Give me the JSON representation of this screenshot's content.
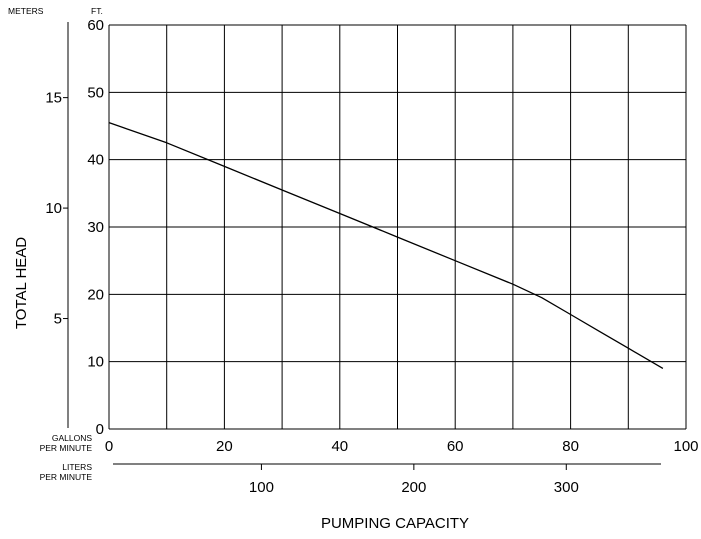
{
  "chart_data": {
    "type": "line",
    "title": "",
    "xlabel": "PUMPING CAPACITY",
    "ylabel": "TOTAL HEAD",
    "y_ft": {
      "unit": "FT.",
      "ticks": [
        0,
        10,
        20,
        30,
        40,
        50,
        60
      ],
      "ylim": [
        0,
        60
      ]
    },
    "y_meters": {
      "unit": "METERS",
      "ticks": [
        5,
        10,
        15
      ]
    },
    "x_gpm": {
      "unit_line1": "GALLONS",
      "unit_line2": "PER MINUTE",
      "ticks": [
        0,
        20,
        40,
        60,
        80,
        100
      ],
      "xlim": [
        0,
        100
      ]
    },
    "x_lpm": {
      "unit_line1": "LITERS",
      "unit_line2": "PER MINUTE",
      "ticks": [
        100,
        200,
        300
      ]
    },
    "grid": true,
    "series": [
      {
        "x": [
          0,
          10,
          20,
          30,
          40,
          50,
          60,
          70,
          75,
          80,
          85,
          90,
          96
        ],
        "y": [
          45.5,
          42.5,
          39,
          35.5,
          32,
          28.5,
          25,
          21.5,
          19.5,
          17,
          14.5,
          12,
          9
        ]
      }
    ]
  }
}
